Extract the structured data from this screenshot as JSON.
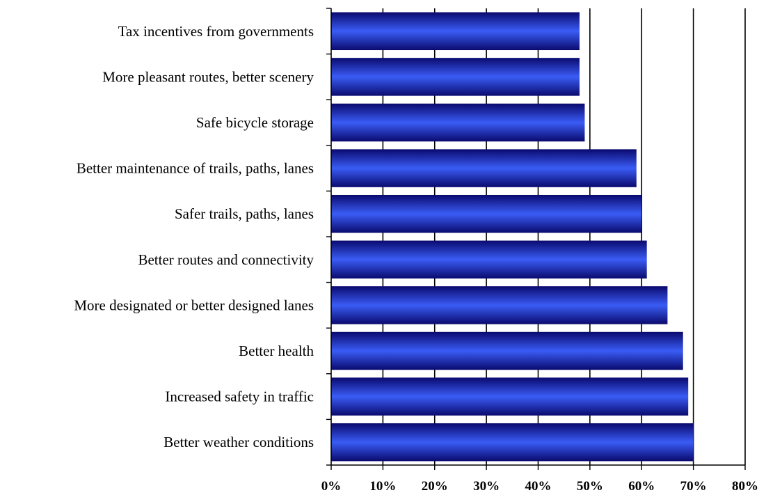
{
  "chart_data": {
    "type": "bar",
    "orientation": "horizontal",
    "title": "",
    "xlabel": "",
    "ylabel": "",
    "categories": [
      "Tax incentives from governments",
      "More pleasant routes, better scenery",
      "Safe bicycle storage",
      "Better maintenance of trails, paths, lanes",
      "Safer trails, paths, lanes",
      "Better routes and connectivity",
      "More designated or better designed lanes",
      "Better health",
      "Increased safety in traffic",
      "Better weather conditions"
    ],
    "values": [
      48,
      48,
      49,
      59,
      60,
      61,
      65,
      68,
      69,
      70
    ],
    "xlim": [
      0,
      80
    ],
    "xticks": [
      0,
      10,
      20,
      30,
      40,
      50,
      60,
      70,
      80
    ],
    "xtick_labels": [
      "0%",
      "10%",
      "20%",
      "30%",
      "40%",
      "50%",
      "60%",
      "70%",
      "80%"
    ],
    "grid": "vertical",
    "legend": "none",
    "colors": {
      "bar_dark": "#0a0a6e",
      "bar_mid": "#2b4be0",
      "bar_light": "#5b7dff",
      "grid": "#000000",
      "axis": "#000000"
    }
  }
}
